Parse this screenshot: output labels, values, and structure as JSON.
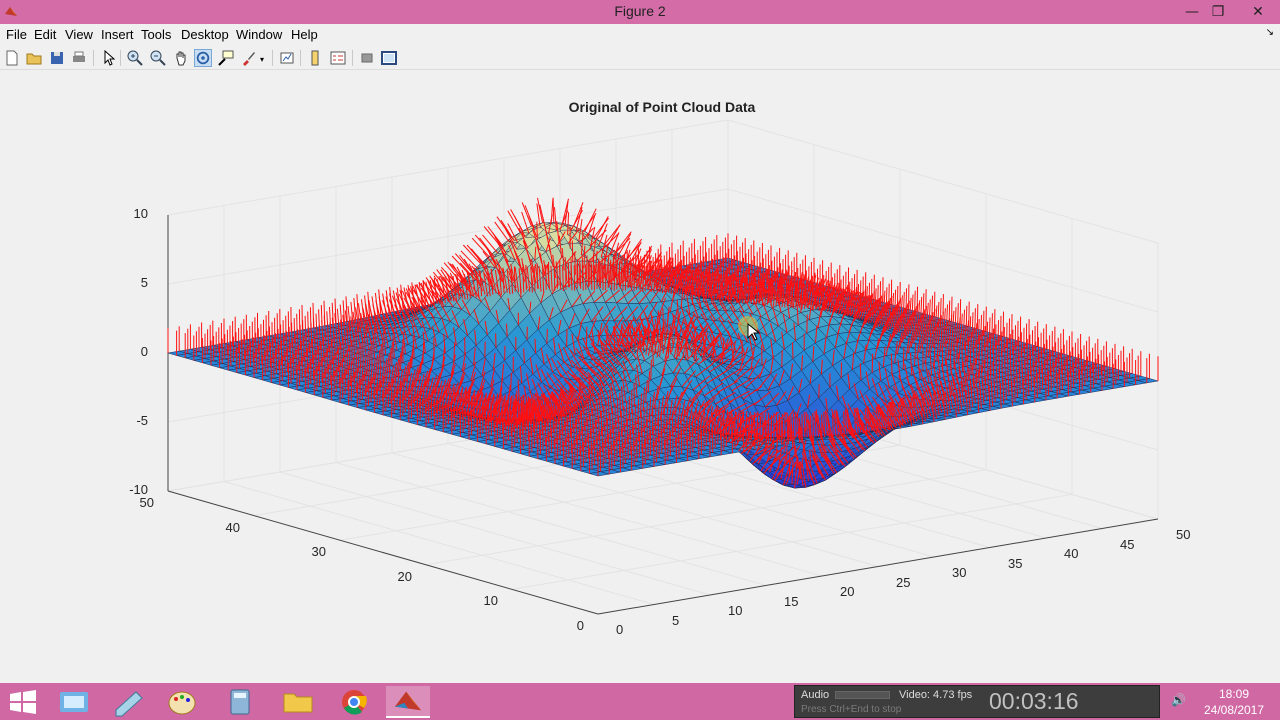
{
  "window": {
    "title": "Figure 2",
    "minimize_glyph": "—",
    "maximize_glyph": "❐",
    "close_glyph": "✕"
  },
  "menu": {
    "items": [
      "File",
      "Edit",
      "View",
      "Insert",
      "Tools",
      "Desktop",
      "Window",
      "Help"
    ],
    "dock_glyph": "↘"
  },
  "toolbar": {
    "buttons": [
      "new-figure-icon",
      "open-file-icon",
      "save-icon",
      "print-icon",
      "edit-plot-icon",
      "zoom-in-icon",
      "zoom-out-icon",
      "pan-icon",
      "rotate-3d-icon",
      "data-cursor-icon",
      "brush-icon",
      "link-plot-icon",
      "colorbar-icon",
      "legend-icon",
      "hide-plot-tools-icon",
      "show-plot-tools-icon"
    ],
    "active": "rotate-3d-icon"
  },
  "chart_data": {
    "type": "3d-surface-with-normals",
    "title": "Original of Point Cloud Data",
    "xlim": [
      0,
      50
    ],
    "ylim": [
      0,
      50
    ],
    "zlim": [
      -10,
      10
    ],
    "x_ticks": [
      "0",
      "5",
      "10",
      "15",
      "20",
      "25",
      "30",
      "35",
      "40",
      "45",
      "50"
    ],
    "y_ticks": [
      "0",
      "10",
      "20",
      "30",
      "40",
      "50"
    ],
    "z_ticks": [
      "10",
      "5",
      "0",
      "-5",
      "-10"
    ],
    "grid": true,
    "surface_color": "#2f4fd8",
    "normal_vector_color": "#ff1010",
    "grid_size": 50
  },
  "taskbar": {
    "apps": [
      "windows-start-icon",
      "control-panel-icon",
      "notepad-icon",
      "paint-icon",
      "calculator-icon",
      "file-explorer-icon",
      "chrome-icon",
      "matlab-icon"
    ],
    "active_app": "matlab-icon"
  },
  "recorder": {
    "audio_label": "Audio",
    "fps_label": "Video: 4.73 fps",
    "hint": "Press Ctrl+End to stop",
    "timer": "00:03:16"
  },
  "clock": {
    "time": "18:09",
    "date": "24/08/2017"
  }
}
